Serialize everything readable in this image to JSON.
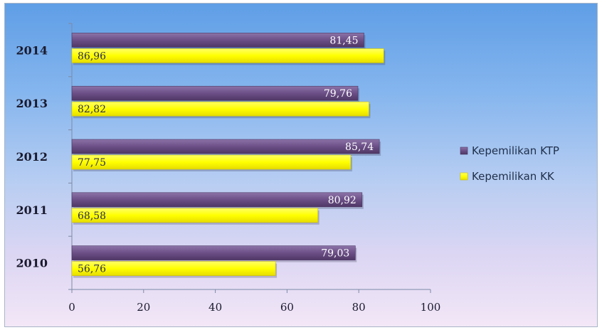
{
  "chart_data": {
    "type": "bar",
    "orientation": "horizontal",
    "categories": [
      "2014",
      "2013",
      "2012",
      "2011",
      "2010"
    ],
    "series": [
      {
        "name": "Kepemilikan KTP",
        "values": [
          81.45,
          79.76,
          85.74,
          80.92,
          79.03
        ],
        "labels": [
          "81,45",
          "79,76",
          "85,74",
          "80,92",
          "79,03"
        ],
        "color": "#6b4f86"
      },
      {
        "name": "Kepemilikan KK",
        "values": [
          86.96,
          82.82,
          77.75,
          68.58,
          56.76
        ],
        "labels": [
          "86,96",
          "82,82",
          "77,75",
          "68,58",
          "56,76"
        ],
        "color": "#ffff00"
      }
    ],
    "xlim": [
      0,
      100
    ],
    "xticks": [
      0,
      20,
      40,
      60,
      80,
      100
    ],
    "legend_position": "right",
    "grid": false
  }
}
